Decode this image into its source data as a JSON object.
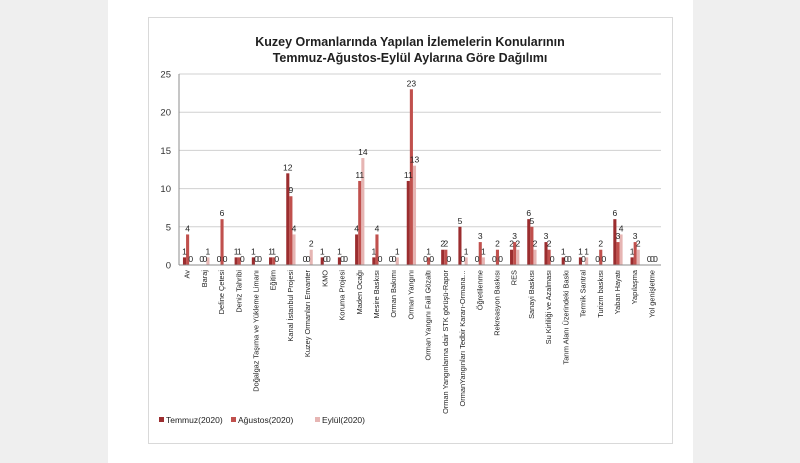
{
  "chart_data": {
    "type": "bar",
    "title_lines": [
      "Kuzey Ormanlarında Yapılan İzlemelerin Konularının",
      "Temmuz-Ağustos-Eylül Aylarına Göre Dağılımı"
    ],
    "ylim": [
      0,
      25
    ],
    "yticks": [
      0,
      5,
      10,
      15,
      20,
      25
    ],
    "grid": "horizontal",
    "legend_position": "bottom-left",
    "categories": [
      "Av",
      "Baraj",
      "Define Çetesi",
      "Deniz Tahribi",
      "Doğalgaz Taşıma ve Yükleme Limanı",
      "Eğitim",
      "Kanal İstanbul Projesi",
      "Kuzey Ormanları Envanter",
      "KMO",
      "Koruma Projesi",
      "Maden Ocağı",
      "Mesire Baskısı",
      "Orman Bakımı",
      "Orman Yangını",
      "Orman Yangını Faili Gözaltı",
      "Orman Yangınlarına dair STK görüşü-Rapor",
      "OrmanYangınları Tedbir Kararı-Ormana…",
      "Öğretilenme",
      "Rekreasyon Baskısı",
      "RES",
      "Sanayi Baskısı",
      "Su Kirliliği ve Azalması",
      "Tarım Alanı Üzerindeki Baskı",
      "Termik Santral",
      "Turizm baskısı",
      "Yaban Hayatı",
      "Yapılaşma",
      "Yol genişletme"
    ],
    "series": [
      {
        "name": "Temmuz(2020)",
        "color": "#9b2d2f",
        "values": [
          1,
          0,
          0,
          1,
          1,
          1,
          12,
          0,
          1,
          1,
          4,
          1,
          0,
          11,
          0,
          2,
          5,
          0,
          0,
          2,
          6,
          3,
          1,
          1,
          0,
          6,
          1,
          0
        ]
      },
      {
        "name": "Ağustos(2020)",
        "color": "#c0504d",
        "values": [
          4,
          0,
          6,
          1,
          0,
          1,
          9,
          0,
          0,
          0,
          11,
          4,
          0,
          23,
          1,
          2,
          0,
          3,
          2,
          3,
          5,
          2,
          0,
          0,
          2,
          3,
          3,
          0
        ]
      },
      {
        "name": "Eylül(2020)",
        "color": "#e6b5b3",
        "values": [
          0,
          1,
          0,
          0,
          0,
          0,
          4,
          2,
          0,
          0,
          14,
          0,
          1,
          13,
          0,
          0,
          1,
          1,
          0,
          2,
          2,
          0,
          0,
          1,
          0,
          4,
          2,
          0
        ]
      }
    ]
  }
}
